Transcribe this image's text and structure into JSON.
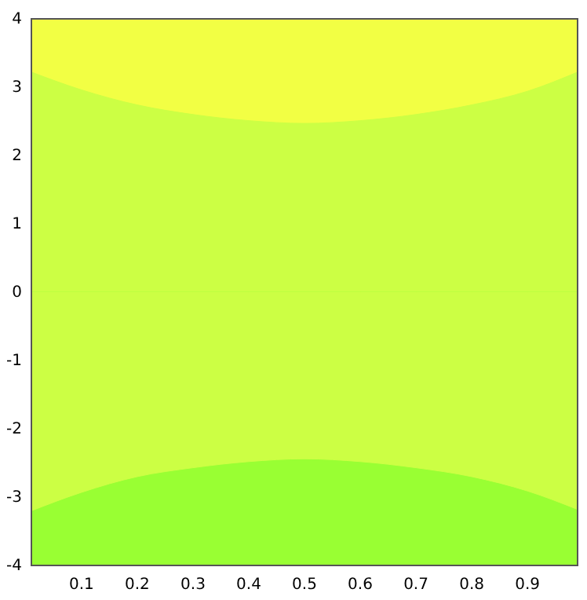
{
  "chart_data": {
    "type": "area",
    "x": [
      0.01,
      0.1,
      0.2,
      0.3,
      0.4,
      0.5,
      0.6,
      0.7,
      0.8,
      0.9,
      0.99
    ],
    "series": [
      {
        "color": "#f2ff44",
        "values": [
          4,
          4,
          4,
          4,
          4,
          4,
          4,
          4,
          4,
          4,
          4
        ]
      },
      {
        "color": "#ccff44",
        "values": [
          3.22,
          2.96,
          2.74,
          2.6,
          2.51,
          2.47,
          2.51,
          2.6,
          2.74,
          2.94,
          3.22
        ]
      },
      {
        "color": "#99ff33",
        "values": [
          -4,
          -4,
          -4,
          -4,
          -4,
          -4,
          -4,
          -4,
          -4,
          -4,
          -4
        ]
      },
      {
        "color": "#ccff44",
        "values": [
          -3.2,
          -2.93,
          -2.7,
          -2.57,
          -2.48,
          -2.44,
          -2.48,
          -2.57,
          -2.7,
          -2.91,
          -3.18
        ]
      }
    ],
    "xlim": [
      0.01,
      0.99
    ],
    "ylim": [
      -4,
      4
    ],
    "xticks": [
      0.1,
      0.2,
      0.3,
      0.4,
      0.5,
      0.6,
      0.7,
      0.8,
      0.9
    ],
    "yticks": [
      -4,
      -3,
      -2,
      -1,
      0,
      1,
      2,
      3,
      4
    ]
  }
}
